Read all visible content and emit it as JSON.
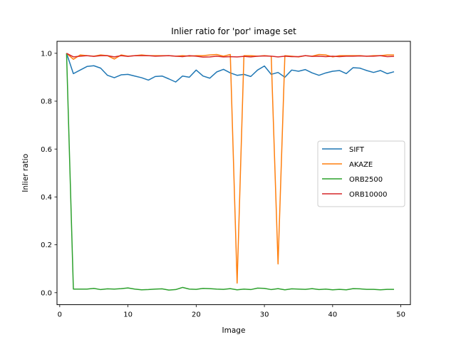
{
  "chart_data": {
    "type": "line",
    "title": "Inlier ratio for 'por' image set",
    "xlabel": "Image",
    "ylabel": "Inlier ratio",
    "xlim": [
      -0.4,
      51.4
    ],
    "ylim": [
      -0.05,
      1.05
    ],
    "xticks": [
      0,
      10,
      20,
      30,
      40,
      50
    ],
    "yticks": [
      0.0,
      0.2,
      0.4,
      0.6,
      0.8,
      1.0
    ],
    "xtick_labels": [
      "0",
      "10",
      "20",
      "30",
      "40",
      "50"
    ],
    "ytick_labels": [
      "0.0",
      "0.2",
      "0.4",
      "0.6",
      "0.8",
      "1.0"
    ],
    "grid": false,
    "legend_position": "center-right",
    "x": [
      1,
      2,
      3,
      4,
      5,
      6,
      7,
      8,
      9,
      10,
      11,
      12,
      13,
      14,
      15,
      16,
      17,
      18,
      19,
      20,
      21,
      22,
      23,
      24,
      25,
      26,
      27,
      28,
      29,
      30,
      31,
      32,
      33,
      34,
      35,
      36,
      37,
      38,
      39,
      40,
      41,
      42,
      43,
      44,
      45,
      46,
      47,
      48,
      49
    ],
    "series": [
      {
        "name": "SIFT",
        "color": "#1f77b4",
        "values": [
          1.0,
          0.915,
          0.93,
          0.945,
          0.948,
          0.938,
          0.908,
          0.898,
          0.91,
          0.912,
          0.905,
          0.898,
          0.888,
          0.903,
          0.905,
          0.893,
          0.88,
          0.905,
          0.9,
          0.93,
          0.905,
          0.896,
          0.922,
          0.933,
          0.918,
          0.908,
          0.912,
          0.903,
          0.93,
          0.947,
          0.912,
          0.92,
          0.9,
          0.93,
          0.925,
          0.932,
          0.918,
          0.908,
          0.918,
          0.925,
          0.928,
          0.915,
          0.94,
          0.938,
          0.928,
          0.92,
          0.928,
          0.915,
          0.923
        ]
      },
      {
        "name": "AKAZE",
        "color": "#ff7f0e",
        "values": [
          1.0,
          0.975,
          0.993,
          0.99,
          0.988,
          0.993,
          0.99,
          0.976,
          0.993,
          0.988,
          0.99,
          0.993,
          0.99,
          0.99,
          0.99,
          0.99,
          0.988,
          0.99,
          0.988,
          0.99,
          0.99,
          0.993,
          0.995,
          0.988,
          0.995,
          0.04,
          0.99,
          0.99,
          0.988,
          0.99,
          0.988,
          0.12,
          0.99,
          0.988,
          0.985,
          0.99,
          0.988,
          0.995,
          0.993,
          0.985,
          0.99,
          0.99,
          0.99,
          0.99,
          0.988,
          0.99,
          0.99,
          0.993,
          0.993
        ]
      },
      {
        "name": "ORB2500",
        "color": "#2ca02c",
        "values": [
          1.0,
          0.015,
          0.015,
          0.015,
          0.018,
          0.013,
          0.016,
          0.015,
          0.017,
          0.02,
          0.015,
          0.012,
          0.013,
          0.015,
          0.016,
          0.011,
          0.013,
          0.022,
          0.015,
          0.014,
          0.018,
          0.017,
          0.015,
          0.014,
          0.017,
          0.012,
          0.015,
          0.013,
          0.019,
          0.018,
          0.013,
          0.017,
          0.012,
          0.016,
          0.015,
          0.014,
          0.017,
          0.013,
          0.015,
          0.012,
          0.014,
          0.012,
          0.017,
          0.016,
          0.014,
          0.014,
          0.012,
          0.014,
          0.014
        ]
      },
      {
        "name": "ORB10000",
        "color": "#d62728",
        "values": [
          1.0,
          0.985,
          0.988,
          0.99,
          0.987,
          0.99,
          0.99,
          0.985,
          0.99,
          0.987,
          0.99,
          0.99,
          0.99,
          0.988,
          0.989,
          0.99,
          0.988,
          0.986,
          0.99,
          0.988,
          0.984,
          0.985,
          0.988,
          0.985,
          0.986,
          0.985,
          0.987,
          0.985,
          0.988,
          0.989,
          0.988,
          0.985,
          0.988,
          0.986,
          0.986,
          0.99,
          0.987,
          0.988,
          0.986,
          0.988,
          0.986,
          0.988,
          0.988,
          0.989,
          0.988,
          0.988,
          0.99,
          0.986,
          0.987
        ]
      }
    ]
  }
}
